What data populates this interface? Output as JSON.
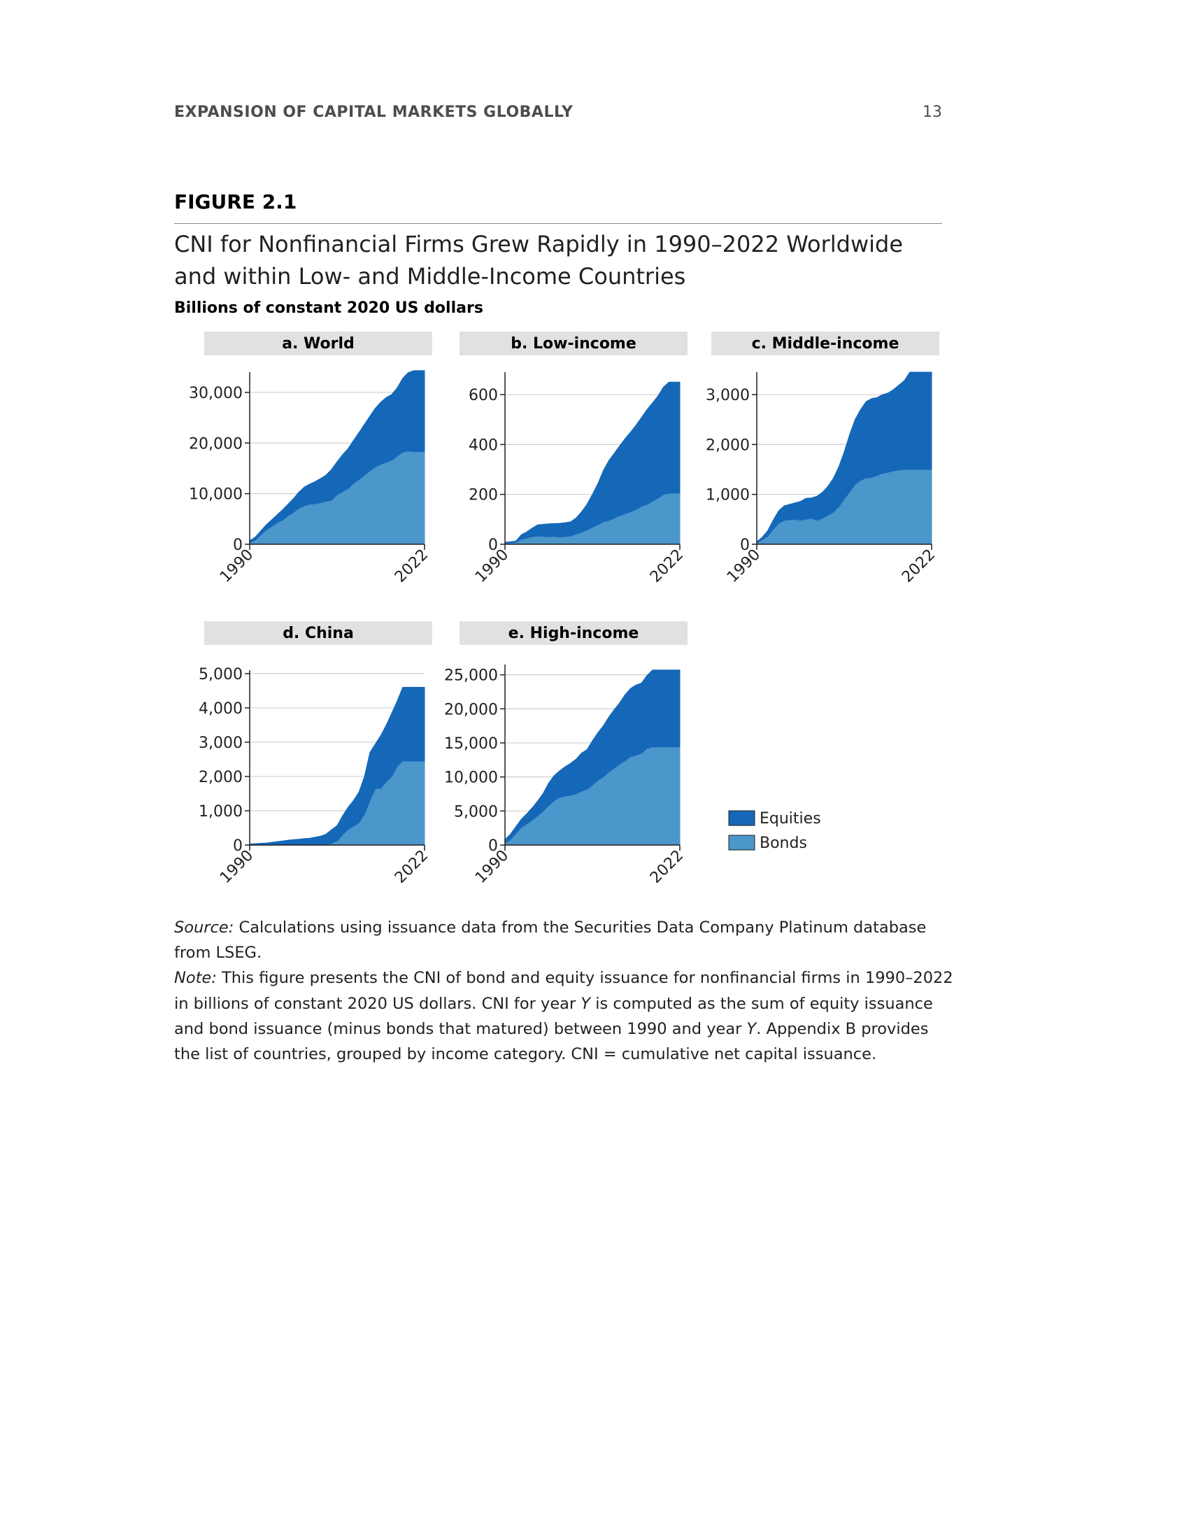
{
  "header": {
    "running_head": "EXPANSION OF CAPITAL MARKETS GLOBALLY",
    "page_number": "13"
  },
  "figure": {
    "label": "FIGURE 2.1",
    "title": "CNI for Nonfinancial Firms Grew Rapidly in 1990–2022 Worldwide and within Low- and Middle-Income Countries",
    "unit": "Billions of constant 2020 US dollars"
  },
  "colors": {
    "equities": "#1568b8",
    "bonds": "#4b96ca",
    "panel_title_bg": "#e0e1e3",
    "gridline": "#cfcfcf",
    "axis": "#231f20"
  },
  "legend": {
    "equities": "Equities",
    "bonds": "Bonds"
  },
  "chart_data": [
    {
      "type": "area",
      "title": "a. World",
      "stacked": true,
      "xlim": [
        1990,
        2022
      ],
      "x_ticks": [
        "1990",
        "2022"
      ],
      "ylim": [
        0,
        34000
      ],
      "y_ticks": [
        0,
        10000,
        20000,
        30000
      ],
      "y_tick_labels": [
        "0",
        "10,000",
        "20,000",
        "30,000"
      ],
      "grid": true,
      "x": [
        1990,
        1991,
        1992,
        1993,
        1994,
        1995,
        1996,
        1997,
        1998,
        1999,
        2000,
        2001,
        2002,
        2003,
        2004,
        2005,
        2006,
        2007,
        2008,
        2009,
        2010,
        2011,
        2012,
        2013,
        2014,
        2015,
        2016,
        2017,
        2018,
        2019,
        2020,
        2021,
        2022
      ],
      "series": [
        {
          "name": "Bonds",
          "values": [
            300,
            800,
            1800,
            2800,
            3500,
            4200,
            4800,
            5600,
            6300,
            7100,
            7600,
            7900,
            8000,
            8200,
            8500,
            8700,
            9800,
            10400,
            11000,
            12000,
            12800,
            13700,
            14500,
            15300,
            15800,
            16200,
            16600,
            17400,
            18200,
            18400,
            18300,
            18300,
            18300
          ]
        },
        {
          "name": "Equities",
          "values": [
            400,
            600,
            800,
            1000,
            1300,
            1600,
            2000,
            2300,
            2700,
            3200,
            3700,
            4000,
            4400,
            4800,
            5200,
            6100,
            6500,
            7300,
            7900,
            8500,
            9300,
            10000,
            10800,
            11600,
            12300,
            12800,
            13000,
            13500,
            14600,
            15500,
            16000,
            16000,
            16000
          ]
        }
      ]
    },
    {
      "type": "area",
      "title": "b. Low-income",
      "stacked": true,
      "xlim": [
        1990,
        2022
      ],
      "x_ticks": [
        "1990",
        "2022"
      ],
      "ylim": [
        0,
        690
      ],
      "y_ticks": [
        0,
        200,
        400,
        600
      ],
      "y_tick_labels": [
        "0",
        "200",
        "400",
        "600"
      ],
      "grid": true,
      "x": [
        1990,
        1991,
        1992,
        1993,
        1994,
        1995,
        1996,
        1997,
        1998,
        1999,
        2000,
        2001,
        2002,
        2003,
        2004,
        2005,
        2006,
        2007,
        2008,
        2009,
        2010,
        2011,
        2012,
        2013,
        2014,
        2015,
        2016,
        2017,
        2018,
        2019,
        2020,
        2021,
        2022
      ],
      "series": [
        {
          "name": "Bonds",
          "values": [
            5,
            6,
            8,
            20,
            25,
            30,
            33,
            32,
            30,
            31,
            29,
            30,
            34,
            40,
            48,
            57,
            68,
            78,
            90,
            95,
            105,
            115,
            122,
            130,
            140,
            152,
            160,
            172,
            185,
            200,
            205,
            205,
            205
          ]
        },
        {
          "name": "Equities",
          "values": [
            3,
            4,
            5,
            18,
            25,
            35,
            45,
            48,
            52,
            52,
            55,
            56,
            56,
            65,
            82,
            103,
            132,
            165,
            205,
            240,
            260,
            280,
            302,
            320,
            338,
            357,
            380,
            395,
            410,
            430,
            445,
            445,
            445
          ]
        }
      ]
    },
    {
      "type": "area",
      "title": "c. Middle-income",
      "stacked": true,
      "xlim": [
        1990,
        2022
      ],
      "x_ticks": [
        "1990",
        "2022"
      ],
      "ylim": [
        0,
        3450
      ],
      "y_ticks": [
        0,
        1000,
        2000,
        3000
      ],
      "y_tick_labels": [
        "0",
        "1,000",
        "2,000",
        "3,000"
      ],
      "grid": true,
      "x": [
        1990,
        1991,
        1992,
        1993,
        1994,
        1995,
        1996,
        1997,
        1998,
        1999,
        2000,
        2001,
        2002,
        2003,
        2004,
        2005,
        2006,
        2007,
        2008,
        2009,
        2010,
        2011,
        2012,
        2013,
        2014,
        2015,
        2016,
        2017,
        2018,
        2019,
        2020,
        2021,
        2022
      ],
      "series": [
        {
          "name": "Bonds",
          "values": [
            30,
            90,
            160,
            300,
            420,
            480,
            490,
            500,
            480,
            500,
            520,
            480,
            520,
            580,
            640,
            750,
            900,
            1050,
            1200,
            1280,
            1330,
            1340,
            1380,
            1420,
            1440,
            1470,
            1490,
            1500,
            1500,
            1500,
            1500,
            1500,
            1500
          ]
        },
        {
          "name": "Equities",
          "values": [
            20,
            50,
            110,
            180,
            250,
            290,
            310,
            330,
            380,
            420,
            410,
            480,
            520,
            580,
            680,
            800,
            950,
            1150,
            1300,
            1420,
            1530,
            1580,
            1560,
            1580,
            1590,
            1630,
            1700,
            1780,
            1950,
            1950,
            1950,
            1950,
            1950
          ]
        }
      ]
    },
    {
      "type": "area",
      "title": "d. China",
      "stacked": true,
      "xlim": [
        1990,
        2022
      ],
      "x_ticks": [
        "1990",
        "2022"
      ],
      "ylim": [
        0,
        5100
      ],
      "y_ticks": [
        0,
        1000,
        2000,
        3000,
        4000,
        5000
      ],
      "y_tick_labels": [
        "0",
        "1,000",
        "2,000",
        "3,000",
        "4,000",
        "5,000"
      ],
      "grid": true,
      "x": [
        1990,
        1991,
        1992,
        1993,
        1994,
        1995,
        1996,
        1997,
        1998,
        1999,
        2000,
        2001,
        2002,
        2003,
        2004,
        2005,
        2006,
        2007,
        2008,
        2009,
        2010,
        2011,
        2012,
        2013,
        2014,
        2015,
        2016,
        2017,
        2018,
        2019,
        2020,
        2021,
        2022
      ],
      "series": [
        {
          "name": "Bonds",
          "values": [
            0,
            0,
            0,
            0,
            0,
            0,
            0,
            0,
            0,
            0,
            0,
            0,
            0,
            10,
            20,
            50,
            120,
            300,
            450,
            550,
            650,
            900,
            1300,
            1650,
            1650,
            1850,
            2000,
            2300,
            2450,
            2450,
            2450,
            2450,
            2450
          ]
        },
        {
          "name": "Equities",
          "values": [
            30,
            40,
            50,
            60,
            80,
            100,
            120,
            140,
            160,
            170,
            190,
            200,
            230,
            250,
            300,
            400,
            450,
            550,
            650,
            750,
            900,
            1100,
            1400,
            1300,
            1550,
            1650,
            1850,
            1900,
            2150,
            2150,
            2150,
            2150,
            2150
          ]
        }
      ]
    },
    {
      "type": "area",
      "title": "e. High-income",
      "stacked": true,
      "xlim": [
        1990,
        2022
      ],
      "x_ticks": [
        "1990",
        "2022"
      ],
      "ylim": [
        0,
        26500
      ],
      "y_ticks": [
        0,
        5000,
        10000,
        15000,
        20000,
        25000
      ],
      "y_tick_labels": [
        "0",
        "5,000",
        "10,000",
        "15,000",
        "20,000",
        "25,000"
      ],
      "grid": true,
      "x": [
        1990,
        1991,
        1992,
        1993,
        1994,
        1995,
        1996,
        1997,
        1998,
        1999,
        2000,
        2001,
        2002,
        2003,
        2004,
        2005,
        2006,
        2007,
        2008,
        2009,
        2010,
        2011,
        2012,
        2013,
        2014,
        2015,
        2016,
        2017,
        2018,
        2019,
        2020,
        2021,
        2022
      ],
      "series": [
        {
          "name": "Bonds",
          "values": [
            300,
            800,
            1700,
            2600,
            3100,
            3700,
            4300,
            5000,
            5800,
            6500,
            7000,
            7200,
            7300,
            7500,
            7900,
            8200,
            8800,
            9500,
            10000,
            10700,
            11300,
            11900,
            12400,
            13000,
            13200,
            13500,
            14200,
            14400,
            14400,
            14400,
            14400,
            14400,
            14400
          ]
        },
        {
          "name": "Equities",
          "values": [
            500,
            800,
            1000,
            1200,
            1500,
            1800,
            2200,
            2600,
            3300,
            3700,
            3900,
            4300,
            4700,
            5100,
            5600,
            5800,
            6500,
            7000,
            7500,
            8100,
            8600,
            9000,
            9700,
            10000,
            10300,
            10300,
            10700,
            11300,
            11300,
            11300,
            11300,
            11300,
            11300
          ]
        }
      ]
    }
  ],
  "notes": {
    "source_label": "Source:",
    "source_text": " Calculations using issuance data from the Securities Data Company Platinum database from LSEG.",
    "note_label": "Note:",
    "note_text_1": " This figure presents the CNI of bond and equity issuance for nonfinancial firms in 1990–2022 in billions of constant 2020 US dollars. CNI for year ",
    "note_var_1": "Y",
    "note_text_2": " is computed as the sum of equity issuance and bond issuance (minus bonds that matured) between 1990 and year ",
    "note_var_2": "Y",
    "note_text_3": ". Appendix B provides the list of countries, grouped by income category. CNI = cumulative net capital issuance."
  }
}
